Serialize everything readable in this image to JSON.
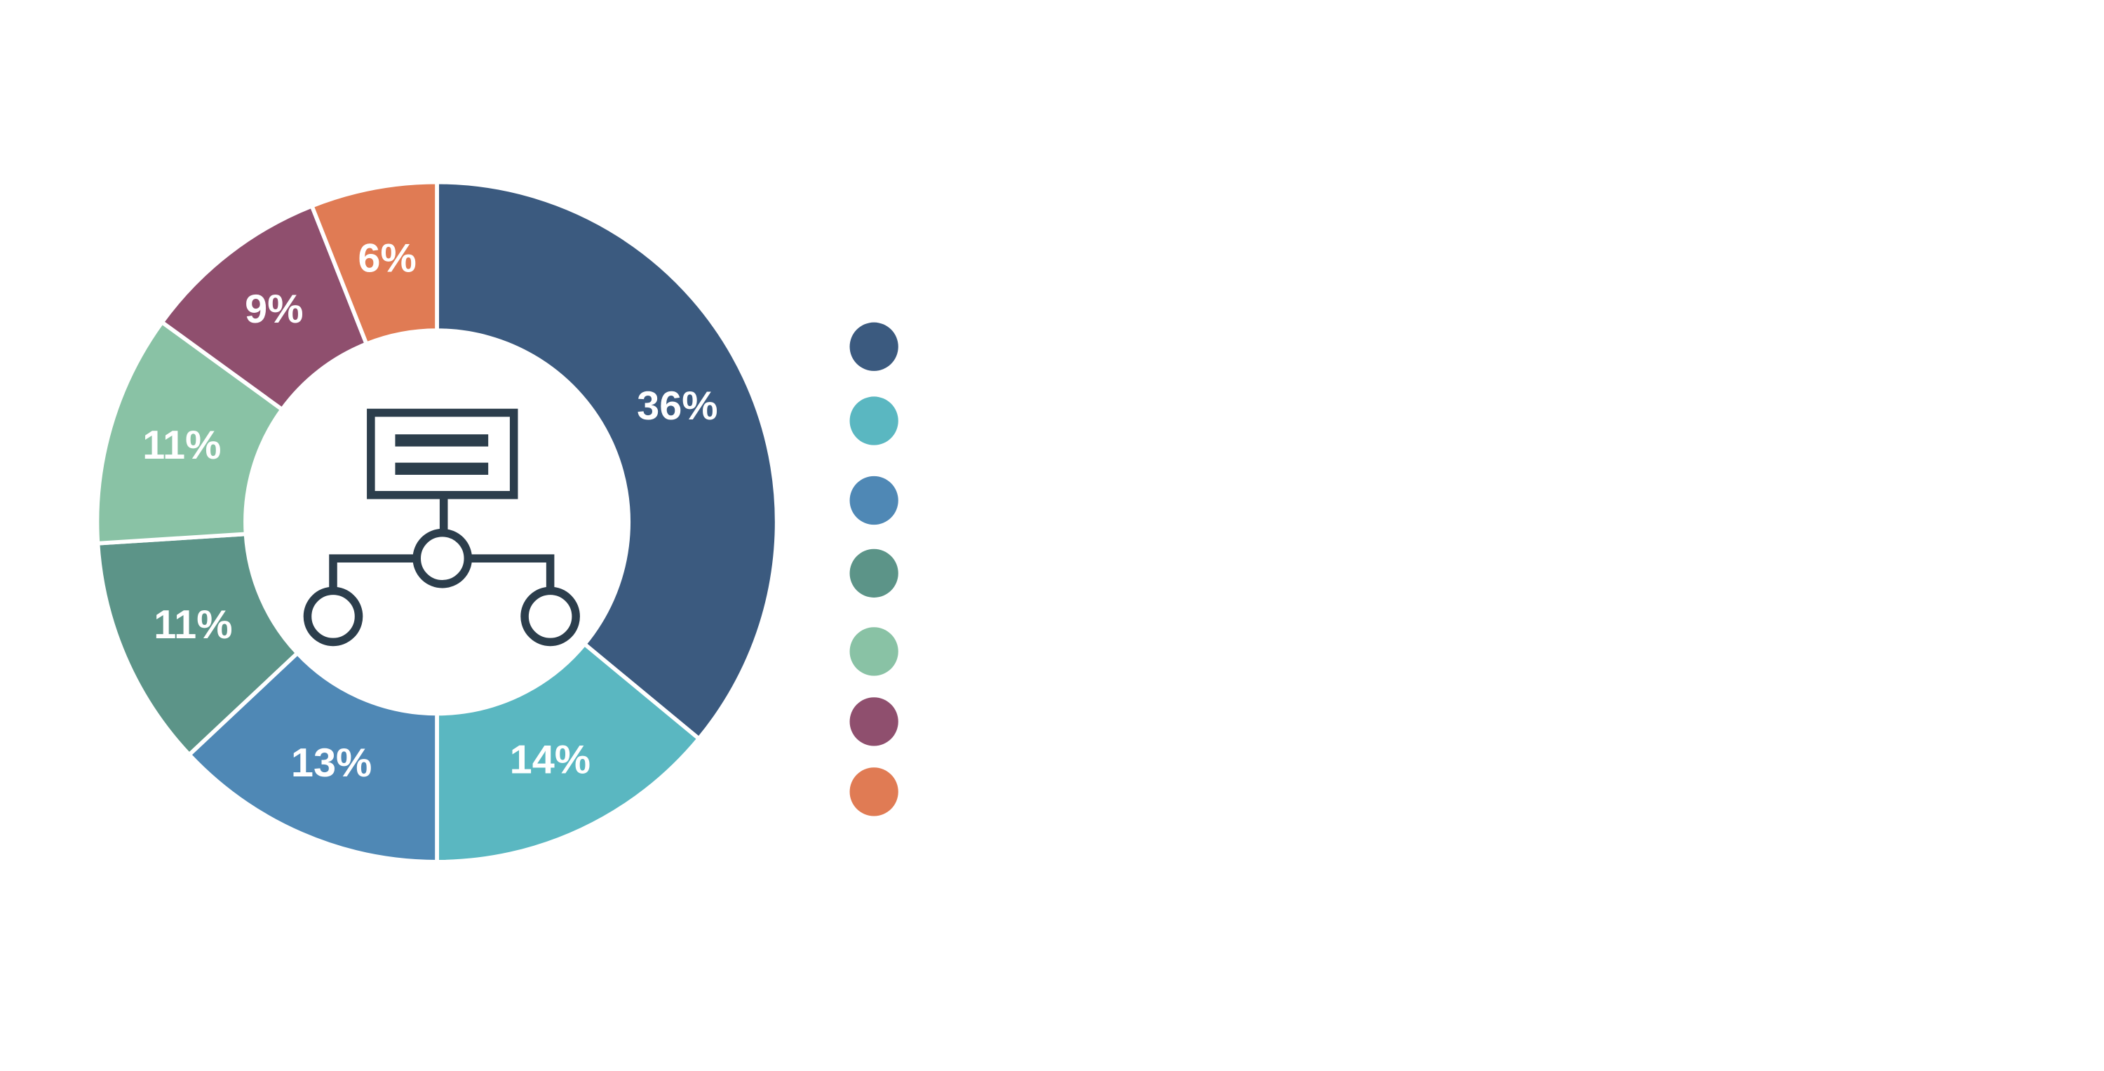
{
  "chart_data": {
    "type": "doughnut",
    "categories": [
      null,
      null,
      null,
      null,
      null,
      null,
      null
    ],
    "values": [
      36,
      14,
      13,
      11,
      11,
      9,
      6
    ],
    "value_labels": [
      "36%",
      "14%",
      "13%",
      "11%",
      "11%",
      "9%",
      "6%"
    ],
    "colors": [
      "#3b5a7f",
      "#5ab7c1",
      "#4f88b5",
      "#5c9488",
      "#89c2a5",
      "#8f4f6e",
      "#e07b54"
    ],
    "legend": "right"
  }
}
